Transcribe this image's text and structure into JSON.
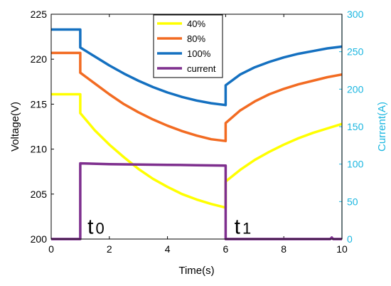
{
  "chart_data": {
    "type": "line",
    "xlabel": "Time(s)",
    "ylabel_left": "Voltage(V)",
    "ylabel_right": "Current(A)",
    "xlim": [
      0,
      10
    ],
    "ylim_left": [
      200,
      225
    ],
    "ylim_right": [
      0,
      300
    ],
    "x_ticks": [
      "0",
      "2",
      "4",
      "6",
      "8",
      "10"
    ],
    "y_left_ticks": [
      "200",
      "205",
      "210",
      "215",
      "220",
      "225"
    ],
    "y_right_ticks": [
      "0",
      "50",
      "100",
      "150",
      "200",
      "250",
      "300"
    ],
    "grid": false,
    "legend_position": "top-center",
    "annotations": [
      {
        "base": "t",
        "sub": "0",
        "x": 1.25,
        "y": 200.6
      },
      {
        "base": "t",
        "sub": "1",
        "x": 6.3,
        "y": 200.6
      }
    ],
    "series": [
      {
        "name": "40%",
        "color": "#FFFF00",
        "axis": "left",
        "points": [
          [
            0,
            216.1
          ],
          [
            1,
            216.1
          ],
          [
            1,
            214
          ],
          [
            1.5,
            212.1
          ],
          [
            2,
            210.5
          ],
          [
            2.5,
            209.1
          ],
          [
            3,
            207.8
          ],
          [
            3.5,
            206.7
          ],
          [
            4,
            205.8
          ],
          [
            4.5,
            205
          ],
          [
            5,
            204.4
          ],
          [
            5.5,
            203.9
          ],
          [
            6,
            203.5
          ],
          [
            6,
            206.4
          ],
          [
            6.5,
            207.7
          ],
          [
            7,
            208.8
          ],
          [
            7.5,
            209.7
          ],
          [
            8,
            210.5
          ],
          [
            8.5,
            211.2
          ],
          [
            9,
            211.8
          ],
          [
            9.5,
            212.3
          ],
          [
            10,
            212.8
          ]
        ]
      },
      {
        "name": "80%",
        "color": "#F26B22",
        "axis": "left",
        "points": [
          [
            0,
            220.7
          ],
          [
            1,
            220.7
          ],
          [
            1,
            218.5
          ],
          [
            1.5,
            217.3
          ],
          [
            2,
            216.1
          ],
          [
            2.5,
            215
          ],
          [
            3,
            214.1
          ],
          [
            3.5,
            213.3
          ],
          [
            4,
            212.6
          ],
          [
            4.5,
            212
          ],
          [
            5,
            211.5
          ],
          [
            5.5,
            211.1
          ],
          [
            6,
            210.9
          ],
          [
            6,
            212.9
          ],
          [
            6.5,
            214.3
          ],
          [
            7,
            215.3
          ],
          [
            7.5,
            216.1
          ],
          [
            8,
            216.7
          ],
          [
            8.5,
            217.2
          ],
          [
            9,
            217.6
          ],
          [
            9.5,
            218
          ],
          [
            10,
            218.3
          ]
        ]
      },
      {
        "name": "100%",
        "color": "#1470C0",
        "axis": "left",
        "points": [
          [
            0,
            223.3
          ],
          [
            1,
            223.3
          ],
          [
            1,
            221.3
          ],
          [
            1.5,
            220.3
          ],
          [
            2,
            219.3
          ],
          [
            2.5,
            218.4
          ],
          [
            3,
            217.6
          ],
          [
            3.5,
            216.9
          ],
          [
            4,
            216.3
          ],
          [
            4.5,
            215.8
          ],
          [
            5,
            215.4
          ],
          [
            5.5,
            215.1
          ],
          [
            6,
            214.9
          ],
          [
            6,
            217.1
          ],
          [
            6.5,
            218.3
          ],
          [
            7,
            219.1
          ],
          [
            7.5,
            219.7
          ],
          [
            8,
            220.2
          ],
          [
            8.5,
            220.6
          ],
          [
            9,
            220.9
          ],
          [
            9.5,
            221.2
          ],
          [
            10,
            221.4
          ]
        ]
      },
      {
        "name": "current",
        "color": "#7E2F8E",
        "axis": "right",
        "points": [
          [
            0,
            0
          ],
          [
            1,
            0
          ],
          [
            1,
            101
          ],
          [
            2,
            100
          ],
          [
            3,
            99.5
          ],
          [
            4,
            99
          ],
          [
            5,
            98.5
          ],
          [
            6,
            98
          ],
          [
            6,
            0
          ],
          [
            9.6,
            0
          ],
          [
            9.65,
            2
          ],
          [
            9.7,
            0
          ],
          [
            10,
            0
          ]
        ]
      }
    ]
  }
}
